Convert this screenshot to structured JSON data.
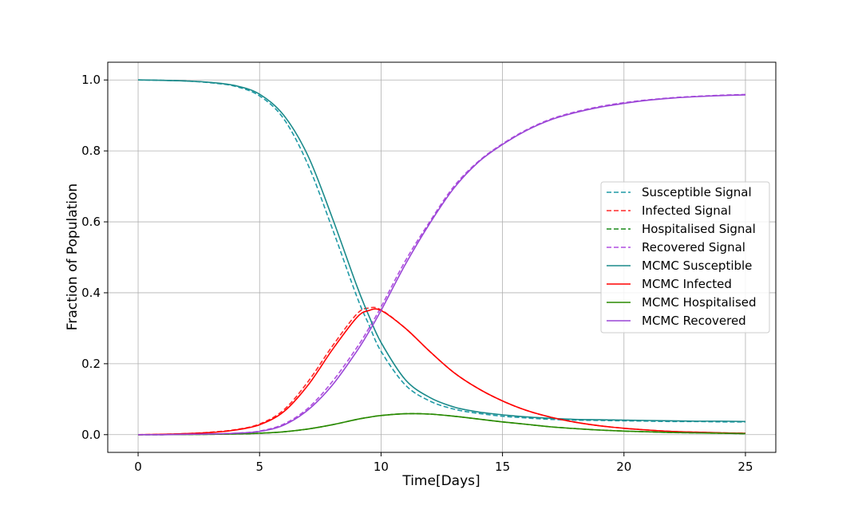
{
  "chart_data": {
    "type": "line",
    "xlabel": "Time[Days]",
    "ylabel": "Fraction of Population",
    "xlim": [
      -1.25,
      26.25
    ],
    "ylim": [
      -0.05,
      1.05
    ],
    "xticks": [
      0,
      5,
      10,
      15,
      20,
      25
    ],
    "yticks": [
      0.0,
      0.2,
      0.4,
      0.6,
      0.8,
      1.0
    ],
    "xtick_labels": [
      "0",
      "5",
      "10",
      "15",
      "20",
      "25"
    ],
    "ytick_labels": [
      "0.0",
      "0.2",
      "0.4",
      "0.6",
      "0.8",
      "1.0"
    ],
    "grid": true,
    "legend_position": "center-right",
    "x": [
      0,
      1,
      2,
      3,
      4,
      5,
      6,
      7,
      8,
      9,
      9.5,
      10,
      11,
      12,
      13,
      14,
      15,
      16,
      17,
      18,
      19,
      20,
      21,
      22,
      23,
      24,
      25
    ],
    "series": [
      {
        "name": "Susceptible Signal",
        "color": "#1f9aa6",
        "dash": true,
        "values": [
          1.0,
          0.999,
          0.997,
          0.992,
          0.982,
          0.955,
          0.89,
          0.76,
          0.58,
          0.39,
          0.31,
          0.235,
          0.14,
          0.095,
          0.072,
          0.06,
          0.052,
          0.047,
          0.043,
          0.041,
          0.04,
          0.039,
          0.038,
          0.037,
          0.037,
          0.036,
          0.036
        ]
      },
      {
        "name": "Infected Signal",
        "color": "#ff2a2a",
        "dash": true,
        "values": [
          0.0,
          0.001,
          0.003,
          0.007,
          0.014,
          0.03,
          0.07,
          0.15,
          0.25,
          0.34,
          0.357,
          0.352,
          0.3,
          0.235,
          0.175,
          0.13,
          0.095,
          0.068,
          0.049,
          0.035,
          0.025,
          0.018,
          0.013,
          0.009,
          0.007,
          0.005,
          0.004
        ]
      },
      {
        "name": "Hospitalised Signal",
        "color": "#1a8a1a",
        "dash": true,
        "values": [
          0.0,
          0.0,
          0.0005,
          0.001,
          0.002,
          0.004,
          0.008,
          0.016,
          0.028,
          0.043,
          0.049,
          0.054,
          0.059,
          0.058,
          0.052,
          0.044,
          0.036,
          0.029,
          0.022,
          0.017,
          0.013,
          0.01,
          0.008,
          0.006,
          0.005,
          0.004,
          0.003
        ]
      },
      {
        "name": "Recovered Signal",
        "color": "#b04fe0",
        "dash": true,
        "values": [
          0.0,
          0.0,
          0.001,
          0.002,
          0.004,
          0.01,
          0.03,
          0.075,
          0.15,
          0.245,
          0.3,
          0.36,
          0.49,
          0.6,
          0.7,
          0.77,
          0.82,
          0.86,
          0.89,
          0.91,
          0.925,
          0.936,
          0.944,
          0.95,
          0.954,
          0.957,
          0.959
        ]
      },
      {
        "name": "MCMC Susceptible",
        "color": "#1a8a8a",
        "dash": false,
        "values": [
          1.0,
          0.999,
          0.997,
          0.993,
          0.984,
          0.96,
          0.9,
          0.785,
          0.61,
          0.42,
          0.335,
          0.26,
          0.155,
          0.105,
          0.078,
          0.064,
          0.056,
          0.05,
          0.046,
          0.043,
          0.042,
          0.041,
          0.04,
          0.039,
          0.038,
          0.038,
          0.037
        ]
      },
      {
        "name": "MCMC Infected",
        "color": "#ff0000",
        "dash": false,
        "values": [
          0.0,
          0.001,
          0.003,
          0.006,
          0.013,
          0.028,
          0.065,
          0.14,
          0.24,
          0.33,
          0.35,
          0.35,
          0.3,
          0.235,
          0.175,
          0.13,
          0.095,
          0.068,
          0.049,
          0.035,
          0.025,
          0.018,
          0.013,
          0.009,
          0.007,
          0.005,
          0.004
        ]
      },
      {
        "name": "MCMC Hospitalised",
        "color": "#2a8a00",
        "dash": false,
        "values": [
          0.0,
          0.0,
          0.0005,
          0.001,
          0.002,
          0.004,
          0.008,
          0.016,
          0.028,
          0.043,
          0.049,
          0.054,
          0.059,
          0.058,
          0.052,
          0.044,
          0.036,
          0.029,
          0.022,
          0.017,
          0.013,
          0.01,
          0.008,
          0.006,
          0.005,
          0.004,
          0.003
        ]
      },
      {
        "name": "MCMC Recovered",
        "color": "#9a45d6",
        "dash": false,
        "values": [
          0.0,
          0.0,
          0.001,
          0.002,
          0.004,
          0.009,
          0.027,
          0.07,
          0.14,
          0.235,
          0.29,
          0.35,
          0.48,
          0.595,
          0.695,
          0.768,
          0.818,
          0.858,
          0.888,
          0.908,
          0.923,
          0.934,
          0.943,
          0.949,
          0.953,
          0.956,
          0.958
        ]
      }
    ]
  }
}
